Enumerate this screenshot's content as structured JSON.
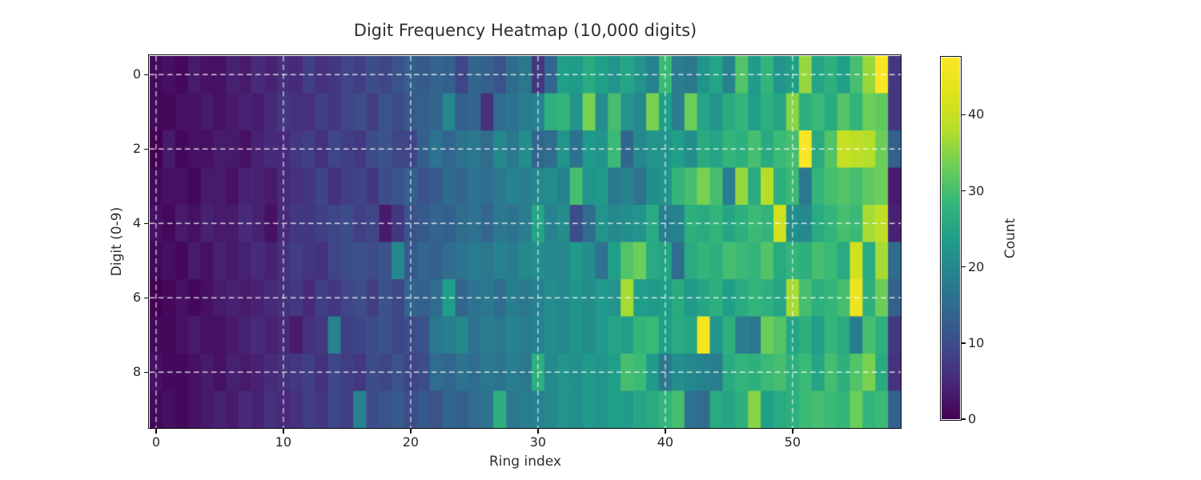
{
  "colors": {
    "background": "#ffffff",
    "text": "#2e2e2e",
    "spine": "#0d0d0d",
    "gridline": "rgba(255,255,255,0.8)",
    "viridis_low": "#440154",
    "viridis_high": "#fde725"
  },
  "chart_data": {
    "type": "heatmap",
    "title": "Digit Frequency Heatmap (10,000 digits)",
    "xlabel": "Ring index",
    "ylabel": "Digit (0-9)",
    "colorbar_label": "Count",
    "colormap": "viridis",
    "grid": true,
    "vmin": 0,
    "vmax": 47.5,
    "x_ticks": [
      0,
      10,
      20,
      30,
      40,
      50
    ],
    "y_ticks": [
      0,
      2,
      4,
      6,
      8
    ],
    "colorbar_ticks": [
      0,
      10,
      20,
      30,
      40
    ],
    "row_labels": [
      0,
      1,
      2,
      3,
      4,
      5,
      6,
      7,
      8,
      9
    ],
    "col_count": 59,
    "values": [
      [
        1,
        2,
        1,
        3,
        2,
        2,
        4,
        3,
        5,
        4,
        6,
        5,
        8,
        6,
        7,
        9,
        8,
        10,
        9,
        11,
        13,
        12,
        14,
        13,
        9,
        14,
        13,
        11,
        15,
        17,
        7,
        14,
        24,
        23,
        26,
        24,
        22,
        25,
        22,
        19,
        29,
        18,
        17,
        22,
        25,
        19,
        31,
        23,
        28,
        22,
        24,
        36,
        25,
        27,
        24,
        30,
        36,
        47,
        7
      ],
      [
        1,
        1,
        2,
        2,
        3,
        2,
        3,
        4,
        3,
        5,
        7,
        6,
        6,
        8,
        7,
        9,
        10,
        8,
        11,
        10,
        12,
        13,
        14,
        20,
        13,
        14,
        6,
        15,
        16,
        18,
        19,
        27,
        28,
        22,
        34,
        21,
        30,
        22,
        20,
        34,
        24,
        18,
        33,
        25,
        22,
        26,
        28,
        24,
        27,
        25,
        35,
        27,
        29,
        26,
        31,
        28,
        33,
        32,
        7
      ],
      [
        0,
        3,
        1,
        2,
        2,
        3,
        3,
        2,
        4,
        5,
        5,
        7,
        8,
        6,
        9,
        8,
        7,
        10,
        11,
        9,
        9,
        13,
        16,
        14,
        16,
        17,
        15,
        20,
        17,
        21,
        14,
        15,
        22,
        16,
        23,
        22,
        29,
        14,
        20,
        22,
        22,
        24,
        21,
        26,
        25,
        28,
        27,
        30,
        26,
        29,
        30,
        47,
        26,
        31,
        40,
        39,
        38,
        33,
        13
      ],
      [
        1,
        2,
        2,
        1,
        3,
        3,
        2,
        4,
        4,
        3,
        5,
        6,
        7,
        9,
        6,
        8,
        9,
        7,
        10,
        11,
        13,
        11,
        12,
        15,
        14,
        16,
        15,
        17,
        19,
        18,
        20,
        21,
        19,
        30,
        22,
        23,
        17,
        19,
        16,
        21,
        22,
        28,
        30,
        34,
        30,
        18,
        36,
        26,
        38,
        27,
        29,
        17,
        28,
        30,
        31,
        30,
        32,
        33,
        3
      ],
      [
        2,
        1,
        3,
        2,
        4,
        3,
        3,
        5,
        4,
        2,
        5,
        7,
        7,
        8,
        9,
        10,
        8,
        9,
        3,
        7,
        11,
        12,
        14,
        13,
        15,
        16,
        14,
        17,
        16,
        18,
        25,
        19,
        21,
        10,
        15,
        22,
        20,
        21,
        22,
        26,
        18,
        19,
        27,
        26,
        28,
        25,
        27,
        29,
        28,
        41,
        21,
        20,
        26,
        28,
        30,
        29,
        37,
        39,
        4
      ],
      [
        1,
        2,
        1,
        3,
        2,
        4,
        3,
        4,
        5,
        4,
        6,
        8,
        7,
        6,
        9,
        10,
        11,
        10,
        11,
        20,
        12,
        14,
        13,
        15,
        16,
        18,
        17,
        19,
        18,
        20,
        21,
        20,
        20,
        23,
        21,
        16,
        24,
        31,
        33,
        26,
        25,
        15,
        26,
        28,
        27,
        30,
        29,
        28,
        31,
        26,
        28,
        27,
        30,
        29,
        26,
        41,
        26,
        37,
        15
      ],
      [
        0,
        1,
        2,
        1,
        2,
        3,
        4,
        3,
        4,
        5,
        6,
        7,
        5,
        8,
        7,
        9,
        10,
        8,
        11,
        9,
        14,
        13,
        15,
        24,
        14,
        16,
        17,
        15,
        18,
        17,
        19,
        21,
        20,
        22,
        21,
        23,
        22,
        37,
        24,
        23,
        24,
        26,
        23,
        25,
        27,
        24,
        26,
        28,
        27,
        25,
        37,
        30,
        27,
        28,
        30,
        45,
        27,
        33,
        13
      ],
      [
        1,
        1,
        2,
        3,
        2,
        2,
        3,
        4,
        5,
        4,
        5,
        3,
        6,
        7,
        19,
        8,
        9,
        10,
        11,
        9,
        10,
        11,
        17,
        18,
        20,
        16,
        18,
        17,
        19,
        18,
        19,
        21,
        20,
        22,
        21,
        23,
        25,
        24,
        28,
        29,
        24,
        26,
        25,
        46,
        22,
        27,
        18,
        17,
        33,
        31,
        25,
        27,
        24,
        28,
        26,
        18,
        30,
        27,
        7
      ],
      [
        2,
        1,
        1,
        2,
        3,
        2,
        4,
        3,
        4,
        5,
        6,
        7,
        8,
        6,
        9,
        8,
        7,
        10,
        9,
        11,
        9,
        10,
        15,
        14,
        16,
        15,
        17,
        16,
        18,
        17,
        27,
        20,
        22,
        21,
        23,
        22,
        24,
        30,
        29,
        23,
        17,
        21,
        20,
        19,
        18,
        26,
        28,
        27,
        29,
        30,
        27,
        29,
        25,
        30,
        27,
        31,
        34,
        26,
        6
      ],
      [
        1,
        2,
        1,
        2,
        3,
        4,
        3,
        5,
        4,
        6,
        5,
        6,
        8,
        7,
        9,
        8,
        19,
        10,
        11,
        12,
        10,
        12,
        11,
        14,
        13,
        15,
        16,
        27,
        17,
        18,
        19,
        20,
        22,
        21,
        23,
        22,
        24,
        23,
        25,
        26,
        28,
        30,
        16,
        15,
        26,
        25,
        27,
        35,
        24,
        26,
        27,
        29,
        30,
        29,
        28,
        33,
        28,
        29,
        13
      ]
    ]
  }
}
